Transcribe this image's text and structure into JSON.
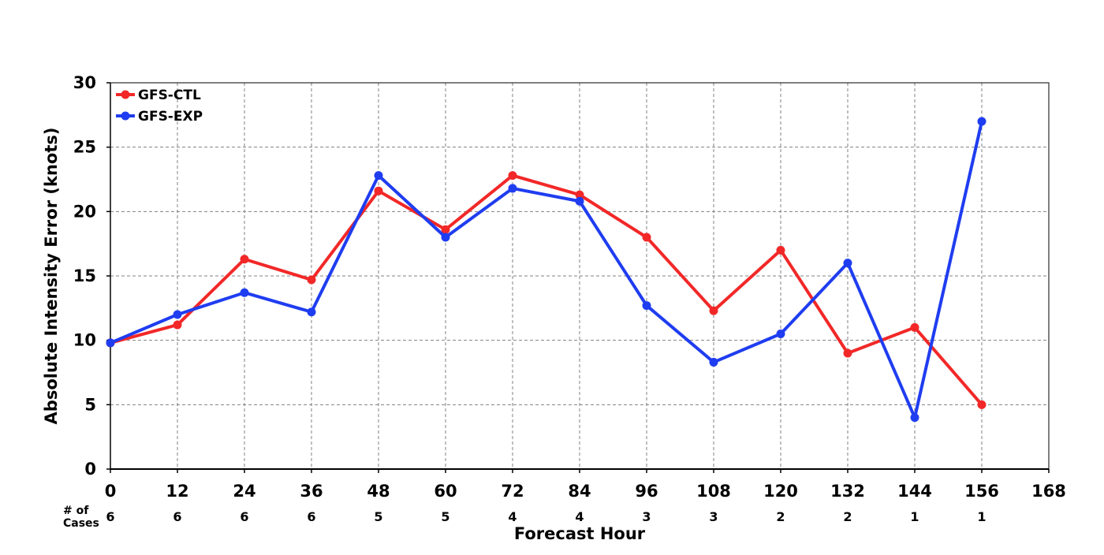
{
  "chart_data": {
    "type": "line",
    "title": "",
    "xlabel": "Forecast Hour",
    "ylabel": "Absolute Intensity Error (knots)",
    "xlim": [
      0,
      168
    ],
    "ylim": [
      0,
      30
    ],
    "x_ticks": [
      0,
      12,
      24,
      36,
      48,
      60,
      72,
      84,
      96,
      108,
      120,
      132,
      144,
      156,
      168
    ],
    "y_ticks": [
      0,
      5,
      10,
      15,
      20,
      25,
      30
    ],
    "grid": true,
    "legend_position": "top-left",
    "cases_label_line1": "# of",
    "cases_label_line2": "Cases",
    "cases": [
      6,
      6,
      6,
      6,
      5,
      5,
      4,
      4,
      3,
      3,
      2,
      2,
      1,
      1
    ],
    "x": [
      0,
      12,
      24,
      36,
      48,
      60,
      72,
      84,
      96,
      108,
      120,
      132,
      144,
      156
    ],
    "series": [
      {
        "name": "GFS-CTL",
        "color": "#f22828",
        "values": [
          9.8,
          11.2,
          16.3,
          14.7,
          21.6,
          18.6,
          22.8,
          21.3,
          18.0,
          12.3,
          17.0,
          9.0,
          11.0,
          5.0
        ]
      },
      {
        "name": "GFS-EXP",
        "color": "#1f3df0",
        "values": [
          9.8,
          12.0,
          13.7,
          12.2,
          22.8,
          18.0,
          21.8,
          20.8,
          12.7,
          8.3,
          10.5,
          16.0,
          4.0,
          27.0
        ]
      }
    ]
  }
}
